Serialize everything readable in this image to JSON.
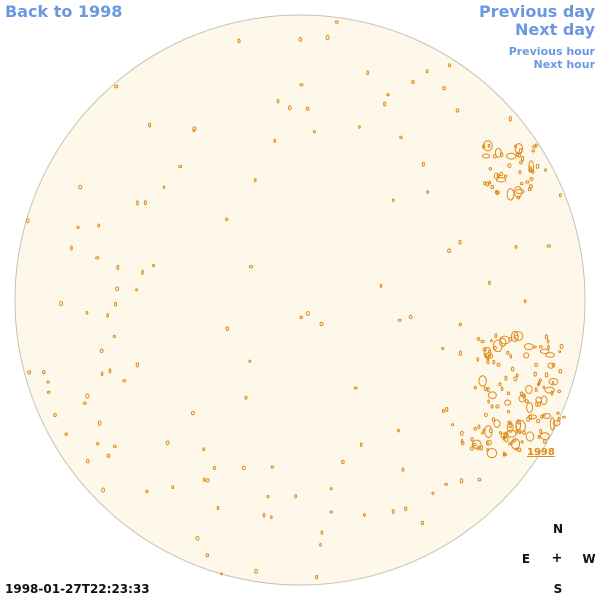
{
  "nav": {
    "back_label": "Back to 1998",
    "prev_day_label": "Previous day",
    "next_day_label": "Next day",
    "prev_hour_label": "Previous hour",
    "next_hour_label": "Next hour"
  },
  "timestamp": "1998-01-27T22:23:33",
  "compass": {
    "n": "N",
    "e": "E",
    "center": "+",
    "w": "W",
    "s": "S"
  },
  "region": {
    "label": "1998"
  },
  "colors": {
    "disk_fill": "#fdf8ea",
    "disk_edge": "#c9c2b2",
    "contour": "#e08a1a",
    "link": "#6b98e0"
  }
}
